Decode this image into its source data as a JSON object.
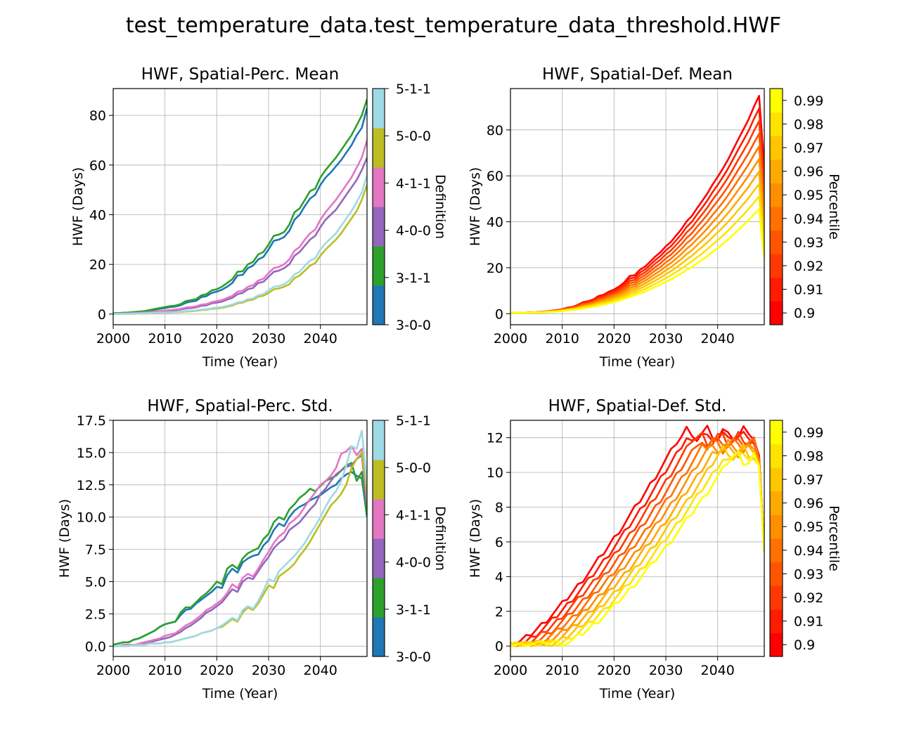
{
  "figure": {
    "suptitle": "test_temperature_data.test_temperature_data_threshold.HWF"
  },
  "chart_data": [
    {
      "type": "line",
      "title": "HWF, Spatial-Perc. Mean",
      "xlabel": "Time (Year)",
      "ylabel": "HWF (Days)",
      "xlim": [
        2000,
        2049
      ],
      "ylim": [
        -4.3,
        90.8
      ],
      "x_ticks": [
        2000,
        2010,
        2020,
        2030,
        2040
      ],
      "y_ticks": [
        0,
        20,
        40,
        60,
        80
      ],
      "grid": true,
      "x": [
        2000,
        2001,
        2002,
        2003,
        2004,
        2005,
        2006,
        2007,
        2008,
        2009,
        2010,
        2011,
        2012,
        2013,
        2014,
        2015,
        2016,
        2017,
        2018,
        2019,
        2020,
        2021,
        2022,
        2023,
        2024,
        2025,
        2026,
        2027,
        2028,
        2029,
        2030,
        2031,
        2032,
        2033,
        2034,
        2035,
        2036,
        2037,
        2038,
        2039,
        2040,
        2041,
        2042,
        2043,
        2044,
        2045,
        2046,
        2047,
        2048,
        2049
      ],
      "colorbar": {
        "label": "Definition",
        "ticks": [
          "3-0-0",
          "3-1-1",
          "4-0-0",
          "4-1-1",
          "5-0-0",
          "5-1-1"
        ],
        "colors": [
          "#1f77b4",
          "#2ca02c",
          "#9467bd",
          "#e377c2",
          "#bcbd22",
          "#9edae5"
        ]
      },
      "series": [
        {
          "color": "#1f77b4",
          "values": [
            0.3,
            0.4,
            0.5,
            0.6,
            0.8,
            0.9,
            1.0,
            1.4,
            1.7,
            2.1,
            2.4,
            2.8,
            3.0,
            3.5,
            4.5,
            5.0,
            5.3,
            6.8,
            7.2,
            8.5,
            9.0,
            9.8,
            11.0,
            12.5,
            15.5,
            15.8,
            18.5,
            19.5,
            22.0,
            23.0,
            26.0,
            29.5,
            30.0,
            31.0,
            33.5,
            38.0,
            40.0,
            43.5,
            46.5,
            48.0,
            52.0,
            55.0,
            57.0,
            59.5,
            62.0,
            65.0,
            68.0,
            72.0,
            75.0,
            83.0
          ]
        },
        {
          "color": "#2ca02c",
          "values": [
            0.3,
            0.4,
            0.5,
            0.6,
            0.8,
            1.0,
            1.2,
            1.6,
            2.0,
            2.4,
            2.8,
            3.2,
            3.4,
            4.0,
            5.2,
            5.6,
            6.0,
            7.5,
            8.0,
            9.5,
            10.0,
            11.0,
            12.5,
            14.0,
            17.0,
            17.2,
            20.0,
            21.0,
            24.0,
            25.0,
            28.0,
            31.5,
            32.0,
            33.0,
            36.0,
            41.0,
            42.5,
            46.0,
            49.5,
            50.5,
            55.0,
            58.0,
            60.5,
            63.0,
            66.0,
            69.0,
            72.0,
            76.0,
            80.0,
            86.5
          ]
        },
        {
          "color": "#9467bd",
          "values": [
            0.1,
            0.1,
            0.2,
            0.2,
            0.3,
            0.4,
            0.5,
            0.6,
            0.8,
            1.0,
            1.1,
            1.3,
            1.5,
            1.8,
            2.2,
            2.4,
            2.7,
            3.3,
            3.5,
            4.3,
            4.6,
            5.0,
            5.8,
            6.5,
            8.0,
            8.5,
            10.0,
            10.5,
            12.5,
            13.0,
            15.0,
            17.0,
            17.5,
            18.5,
            20.0,
            23.5,
            25.0,
            27.5,
            30.0,
            31.5,
            35.0,
            38.0,
            40.0,
            42.0,
            45.0,
            48.0,
            51.0,
            54.0,
            58.0,
            63.0
          ]
        },
        {
          "color": "#e377c2",
          "values": [
            0.1,
            0.2,
            0.2,
            0.3,
            0.4,
            0.5,
            0.6,
            0.8,
            1.0,
            1.2,
            1.4,
            1.6,
            1.8,
            2.1,
            2.6,
            2.8,
            3.1,
            3.8,
            4.0,
            4.8,
            5.2,
            5.6,
            6.5,
            7.3,
            9.0,
            9.4,
            11.0,
            11.6,
            13.5,
            14.2,
            16.5,
            18.5,
            19.0,
            20.0,
            22.0,
            25.5,
            27.0,
            30.0,
            32.5,
            34.0,
            38.0,
            41.0,
            43.5,
            46.0,
            49.0,
            52.0,
            55.0,
            59.0,
            63.0,
            70.0
          ]
        },
        {
          "color": "#bcbd22",
          "values": [
            0.0,
            0.0,
            0.1,
            0.1,
            0.1,
            0.2,
            0.2,
            0.3,
            0.4,
            0.5,
            0.5,
            0.6,
            0.7,
            0.8,
            1.0,
            1.1,
            1.3,
            1.6,
            1.7,
            2.1,
            2.3,
            2.5,
            3.0,
            3.4,
            4.3,
            4.6,
            5.5,
            5.8,
            7.0,
            7.4,
            8.5,
            10.0,
            10.3,
            11.0,
            12.0,
            14.5,
            15.5,
            17.5,
            19.5,
            20.5,
            23.5,
            26.0,
            28.0,
            30.0,
            32.5,
            35.5,
            38.5,
            41.5,
            46.0,
            52.0
          ]
        },
        {
          "color": "#9edae5",
          "values": [
            0.0,
            0.1,
            0.1,
            0.1,
            0.2,
            0.2,
            0.3,
            0.4,
            0.5,
            0.6,
            0.6,
            0.7,
            0.8,
            1.0,
            1.2,
            1.3,
            1.5,
            1.8,
            1.9,
            2.3,
            2.6,
            2.8,
            3.3,
            3.8,
            4.7,
            5.0,
            6.0,
            6.3,
            7.5,
            8.0,
            9.5,
            11.0,
            11.3,
            12.0,
            13.5,
            16.0,
            17.0,
            19.5,
            21.5,
            22.5,
            26.0,
            28.5,
            30.5,
            32.5,
            35.5,
            38.5,
            41.5,
            45.0,
            49.0,
            56.0
          ]
        }
      ]
    },
    {
      "type": "line",
      "title": "HWF, Spatial-Def. Mean",
      "xlabel": "Time (Year)",
      "ylabel": "HWF (Days)",
      "xlim": [
        2000,
        2049
      ],
      "ylim": [
        -4.8,
        98.0
      ],
      "x_ticks": [
        2000,
        2010,
        2020,
        2030,
        2040
      ],
      "y_ticks": [
        0,
        20,
        40,
        60,
        80
      ],
      "grid": true,
      "colorbar": {
        "label": "Percentile",
        "ticks": [
          "0.9",
          "0.91",
          "0.92",
          "0.93",
          "0.94",
          "0.95",
          "0.96",
          "0.97",
          "0.98",
          "0.99"
        ]
      },
      "series_generated": "ten percentile curves 0.90 (red) to 0.99 (yellow), peak ~93 down to ~45"
    },
    {
      "type": "line",
      "title": "HWF, Spatial-Perc. Std.",
      "xlabel": "Time (Year)",
      "ylabel": "HWF (Days)",
      "xlim": [
        2000,
        2049
      ],
      "ylim": [
        -0.8,
        17.5
      ],
      "x_ticks": [
        2000,
        2010,
        2020,
        2030,
        2040
      ],
      "y_ticks": [
        "0.0",
        "2.5",
        "5.0",
        "7.5",
        "10.0",
        "12.5",
        "15.0",
        "17.5"
      ],
      "grid": true,
      "x": [
        2000,
        2001,
        2002,
        2003,
        2004,
        2005,
        2006,
        2007,
        2008,
        2009,
        2010,
        2011,
        2012,
        2013,
        2014,
        2015,
        2016,
        2017,
        2018,
        2019,
        2020,
        2021,
        2022,
        2023,
        2024,
        2025,
        2026,
        2027,
        2028,
        2029,
        2030,
        2031,
        2032,
        2033,
        2034,
        2035,
        2036,
        2037,
        2038,
        2039,
        2040,
        2041,
        2042,
        2043,
        2044,
        2045,
        2046,
        2047,
        2048,
        2049
      ],
      "colorbar": {
        "label": "Definition",
        "ticks": [
          "3-0-0",
          "3-1-1",
          "4-0-0",
          "4-1-1",
          "5-0-0",
          "5-1-1"
        ],
        "colors": [
          "#1f77b4",
          "#2ca02c",
          "#9467bd",
          "#e377c2",
          "#bcbd22",
          "#9edae5"
        ]
      },
      "series": [
        {
          "color": "#1f77b4",
          "values": [
            0.1,
            0.2,
            0.3,
            0.3,
            0.5,
            0.6,
            0.8,
            1.0,
            1.2,
            1.5,
            1.7,
            1.8,
            1.9,
            2.4,
            2.8,
            2.9,
            3.3,
            3.6,
            3.9,
            4.2,
            4.6,
            4.5,
            5.5,
            6.0,
            5.7,
            6.5,
            6.8,
            7.0,
            7.1,
            7.8,
            8.2,
            9.0,
            9.5,
            9.3,
            10.0,
            10.5,
            10.8,
            11.0,
            11.3,
            11.5,
            11.7,
            12.0,
            12.3,
            12.5,
            13.0,
            13.3,
            13.5,
            13.2,
            13.0,
            10.0
          ]
        },
        {
          "color": "#2ca02c",
          "values": [
            0.1,
            0.2,
            0.3,
            0.3,
            0.5,
            0.6,
            0.8,
            1.0,
            1.2,
            1.5,
            1.7,
            1.8,
            1.9,
            2.6,
            3.0,
            3.0,
            3.4,
            3.8,
            4.1,
            4.5,
            5.0,
            4.8,
            6.0,
            6.3,
            6.0,
            6.8,
            7.2,
            7.4,
            7.6,
            8.3,
            8.7,
            9.6,
            10.0,
            9.8,
            10.6,
            11.0,
            11.5,
            11.8,
            12.2,
            12.0,
            12.4,
            12.8,
            13.0,
            13.2,
            13.6,
            14.0,
            14.2,
            12.8,
            13.5,
            10.0
          ]
        },
        {
          "color": "#9467bd",
          "values": [
            0.0,
            0.0,
            0.1,
            0.1,
            0.1,
            0.1,
            0.2,
            0.3,
            0.4,
            0.5,
            0.6,
            0.7,
            0.9,
            1.1,
            1.4,
            1.6,
            1.9,
            2.2,
            2.6,
            2.8,
            3.1,
            3.4,
            3.9,
            4.4,
            4.2,
            5.0,
            5.3,
            5.2,
            5.8,
            6.4,
            6.9,
            7.6,
            8.0,
            8.3,
            9.0,
            9.3,
            9.6,
            10.1,
            10.6,
            11.0,
            11.8,
            12.2,
            12.8,
            13.3,
            13.6,
            13.9,
            14.0,
            14.5,
            14.8,
            11.0
          ]
        },
        {
          "color": "#e377c2",
          "values": [
            0.0,
            0.0,
            0.1,
            0.1,
            0.1,
            0.2,
            0.3,
            0.4,
            0.5,
            0.6,
            0.8,
            0.9,
            1.0,
            1.3,
            1.6,
            1.8,
            2.1,
            2.4,
            2.8,
            3.0,
            3.3,
            3.6,
            4.1,
            4.8,
            4.5,
            5.3,
            5.6,
            5.4,
            6.0,
            6.7,
            7.3,
            8.0,
            8.5,
            8.8,
            9.5,
            9.8,
            10.2,
            10.8,
            11.4,
            11.9,
            12.5,
            12.8,
            13.2,
            13.8,
            14.9,
            15.1,
            15.5,
            14.8,
            15.3,
            11.2
          ]
        },
        {
          "color": "#bcbd22",
          "values": [
            0.0,
            0.0,
            0.0,
            0.0,
            0.1,
            0.1,
            0.1,
            0.2,
            0.2,
            0.2,
            0.3,
            0.3,
            0.4,
            0.5,
            0.6,
            0.7,
            0.8,
            1.0,
            1.1,
            1.2,
            1.4,
            1.5,
            1.8,
            2.1,
            1.9,
            2.6,
            3.0,
            2.8,
            3.3,
            4.0,
            4.7,
            4.5,
            5.4,
            5.7,
            6.0,
            6.4,
            7.0,
            7.5,
            8.1,
            8.8,
            9.5,
            10.2,
            10.9,
            11.3,
            11.8,
            12.5,
            13.8,
            14.5,
            15.0,
            12.0
          ]
        },
        {
          "color": "#9edae5",
          "values": [
            0.0,
            0.0,
            0.0,
            0.0,
            0.1,
            0.1,
            0.1,
            0.2,
            0.2,
            0.2,
            0.3,
            0.3,
            0.4,
            0.5,
            0.6,
            0.7,
            0.8,
            1.0,
            1.1,
            1.2,
            1.4,
            1.6,
            1.9,
            2.2,
            2.0,
            2.8,
            3.1,
            2.9,
            3.5,
            4.3,
            5.2,
            5.0,
            5.8,
            6.2,
            6.6,
            7.0,
            7.5,
            8.0,
            8.7,
            9.3,
            10.0,
            10.8,
            11.5,
            12.0,
            12.8,
            14.0,
            15.5,
            15.3,
            16.7,
            12.5
          ]
        }
      ]
    },
    {
      "type": "line",
      "title": "HWF, Spatial-Def. Std.",
      "xlabel": "Time (Year)",
      "ylabel": "HWF (Days)",
      "xlim": [
        2000,
        2049
      ],
      "ylim": [
        -0.6,
        13.0
      ],
      "x_ticks": [
        2000,
        2010,
        2020,
        2030,
        2040
      ],
      "y_ticks": [
        0,
        2,
        4,
        6,
        8,
        10,
        12
      ],
      "grid": true,
      "colorbar": {
        "label": "Percentile",
        "ticks": [
          "0.9",
          "0.91",
          "0.92",
          "0.93",
          "0.94",
          "0.95",
          "0.96",
          "0.97",
          "0.98",
          "0.99"
        ]
      },
      "series_generated": "ten percentile curves 0.90 (red) to 0.99 (yellow), rising to ~12 then plateau"
    }
  ]
}
